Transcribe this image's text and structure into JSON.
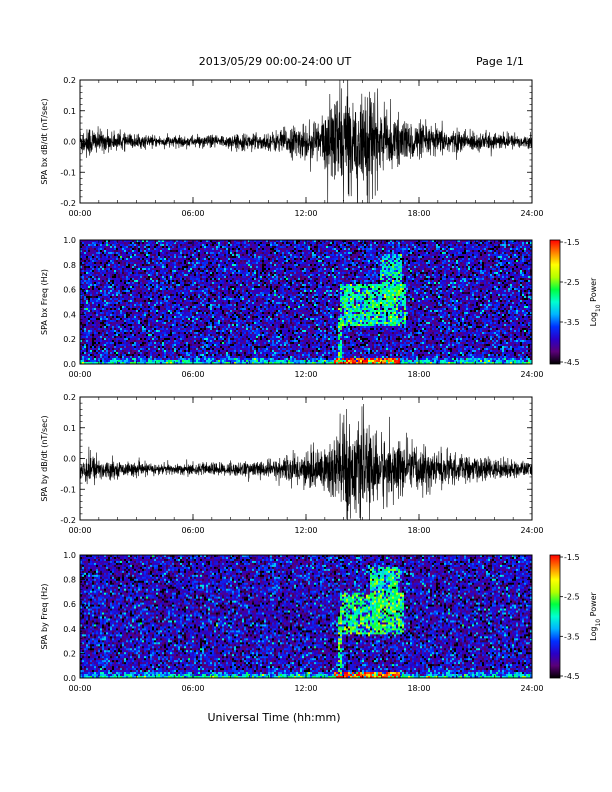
{
  "header": {
    "date_range": "2013/05/29  00:00-24:00 UT",
    "page": "Page 1/1"
  },
  "colorbar": {
    "label": "Log",
    "label_sub": "10",
    "label_tail": " Power",
    "ticks": [
      "-1.5",
      "-2.5",
      "-3.5",
      "-4.5"
    ],
    "range": [
      -4.5,
      -1.5
    ],
    "colors": [
      "#000000",
      "#5a0078",
      "#2a00c8",
      "#0030ff",
      "#00b4ff",
      "#00ffd0",
      "#00ff40",
      "#b4ff00",
      "#ffff00",
      "#ff8000",
      "#ff0000"
    ]
  },
  "xlabel": "Universal Time (hh:mm)",
  "time_ticks": [
    "00:00",
    "06:00",
    "12:00",
    "18:00",
    "24:00"
  ],
  "chart_data": [
    {
      "type": "line",
      "ylabel": "SPA bx dB/dt (nT/sec)",
      "x_range": [
        "00:00",
        "24:00"
      ],
      "ylim": [
        -0.2,
        0.2
      ],
      "yticks": [
        "0.2",
        "0.1",
        "0.0",
        "-0.1",
        "-0.2"
      ],
      "line_color": "#000000",
      "envelope": {
        "hours": [
          0,
          0.5,
          1,
          2,
          4,
          6,
          8,
          10,
          11,
          12,
          13,
          13.5,
          14,
          14.5,
          15,
          15.5,
          16,
          17,
          18,
          20,
          22,
          24
        ],
        "amplitude": [
          0.05,
          0.06,
          0.04,
          0.03,
          0.02,
          0.02,
          0.025,
          0.03,
          0.05,
          0.06,
          0.1,
          0.16,
          0.2,
          0.14,
          0.2,
          0.18,
          0.1,
          0.08,
          0.06,
          0.04,
          0.03,
          0.02
        ]
      },
      "offset": 0.0
    },
    {
      "type": "heatmap",
      "ylabel": "SPA bx Freq (Hz)",
      "x_range": [
        "00:00",
        "24:00"
      ],
      "ylim": [
        0.0,
        1.0
      ],
      "yticks": [
        "1.0",
        "0.8",
        "0.6",
        "0.4",
        "0.2",
        "0.0"
      ],
      "zlim": [
        -4.5,
        -1.5
      ],
      "features": [
        {
          "t0": 13.8,
          "t1": 17.3,
          "f0": 0.3,
          "f1": 0.65,
          "level": -2.9
        },
        {
          "t0": 15.9,
          "t1": 17.1,
          "f0": 0.5,
          "f1": 0.88,
          "level": -3.0
        },
        {
          "t0": 13.7,
          "t1": 13.9,
          "f0": 0.0,
          "f1": 0.45,
          "level": -2.7
        },
        {
          "t0": 13.5,
          "t1": 17.0,
          "f0": 0.0,
          "f1": 0.05,
          "level": -1.7
        }
      ]
    },
    {
      "type": "line",
      "ylabel": "SPA by dB/dt (nT/sec)",
      "x_range": [
        "00:00",
        "24:00"
      ],
      "ylim": [
        -0.2,
        0.2
      ],
      "yticks": [
        "0.2",
        "0.1",
        "0.0",
        "-0.1",
        "-0.2"
      ],
      "line_color": "#000000",
      "envelope": {
        "hours": [
          0,
          0.5,
          1,
          2,
          4,
          6,
          8,
          10,
          11,
          12,
          13,
          13.5,
          14,
          14.5,
          15,
          15.5,
          16,
          17,
          18,
          20,
          22,
          24
        ],
        "amplitude": [
          0.05,
          0.06,
          0.04,
          0.025,
          0.02,
          0.02,
          0.025,
          0.03,
          0.045,
          0.06,
          0.09,
          0.14,
          0.2,
          0.16,
          0.15,
          0.13,
          0.12,
          0.1,
          0.08,
          0.05,
          0.035,
          0.025
        ]
      },
      "offset": -0.035
    },
    {
      "type": "heatmap",
      "ylabel": "SPA by Freq (Hz)",
      "x_range": [
        "00:00",
        "24:00"
      ],
      "ylim": [
        0.0,
        1.0
      ],
      "yticks": [
        "1.0",
        "0.8",
        "0.6",
        "0.4",
        "0.2",
        "0.0"
      ],
      "zlim": [
        -4.5,
        -1.5
      ],
      "features": [
        {
          "t0": 13.8,
          "t1": 17.2,
          "f0": 0.35,
          "f1": 0.7,
          "level": -2.8
        },
        {
          "t0": 15.4,
          "t1": 17.0,
          "f0": 0.55,
          "f1": 0.9,
          "level": -2.9
        },
        {
          "t0": 13.7,
          "t1": 13.9,
          "f0": 0.0,
          "f1": 0.5,
          "level": -2.7
        },
        {
          "t0": 13.5,
          "t1": 17.0,
          "f0": 0.0,
          "f1": 0.05,
          "level": -1.7
        }
      ]
    }
  ]
}
